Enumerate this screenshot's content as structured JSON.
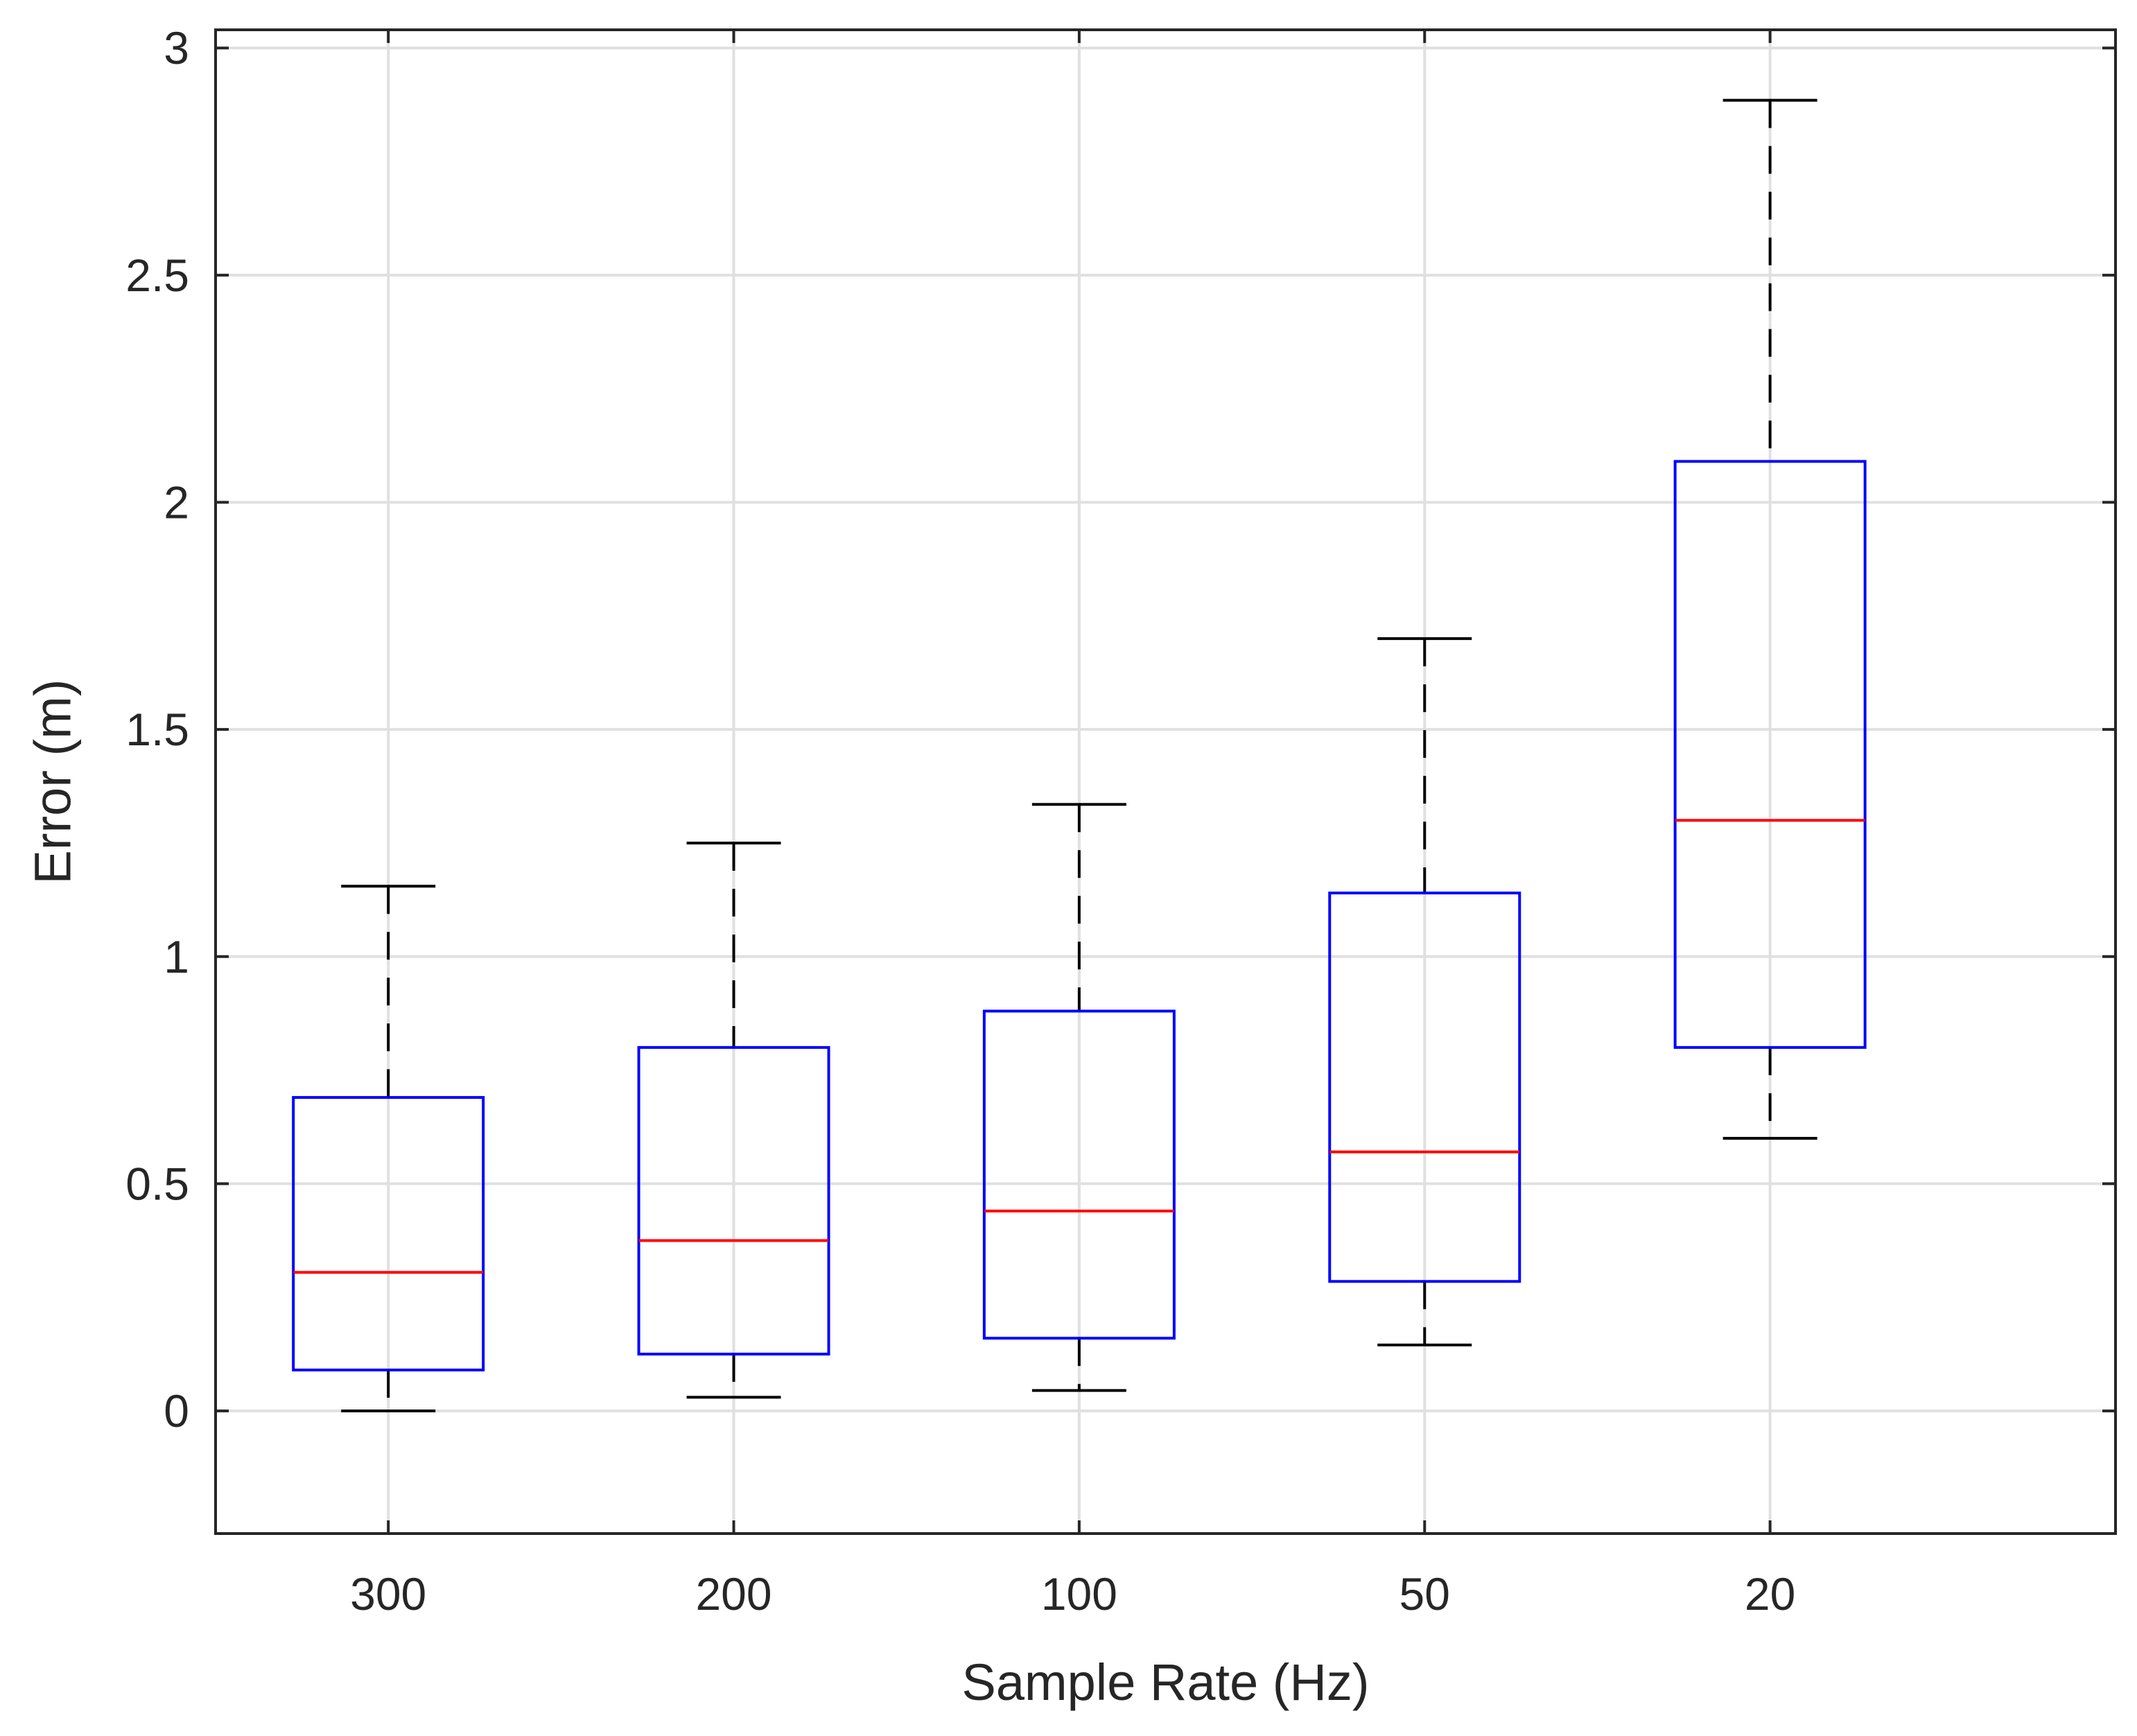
{
  "chart_data": {
    "type": "boxplot",
    "title": "",
    "xlabel": "Sample Rate (Hz)",
    "ylabel": "Error (m)",
    "categories": [
      "300",
      "200",
      "100",
      "50",
      "20"
    ],
    "ylim": [
      -0.27,
      3.04
    ],
    "yticks": [
      0,
      0.5,
      1,
      1.5,
      2,
      2.5,
      3
    ],
    "ytick_labels": [
      "0",
      "0.5",
      "1",
      "1.5",
      "2",
      "2.5",
      "3"
    ],
    "grid": true,
    "boxes": [
      {
        "category": "300",
        "whisker_low": 0.0,
        "q1": 0.09,
        "median": 0.305,
        "q3": 0.69,
        "whisker_high": 1.155
      },
      {
        "category": "200",
        "whisker_low": 0.03,
        "q1": 0.125,
        "median": 0.375,
        "q3": 0.8,
        "whisker_high": 1.25
      },
      {
        "category": "100",
        "whisker_low": 0.045,
        "q1": 0.16,
        "median": 0.44,
        "q3": 0.88,
        "whisker_high": 1.335
      },
      {
        "category": "50",
        "whisker_low": 0.145,
        "q1": 0.285,
        "median": 0.57,
        "q3": 1.14,
        "whisker_high": 1.7
      },
      {
        "category": "20",
        "whisker_low": 0.6,
        "q1": 0.8,
        "median": 1.3,
        "q3": 2.09,
        "whisker_high": 2.885
      }
    ],
    "colors": {
      "box": "#0000ff",
      "median": "#ff0000",
      "whisker": "#000000",
      "grid": "#e0e0e0",
      "axis": "#262626"
    }
  }
}
